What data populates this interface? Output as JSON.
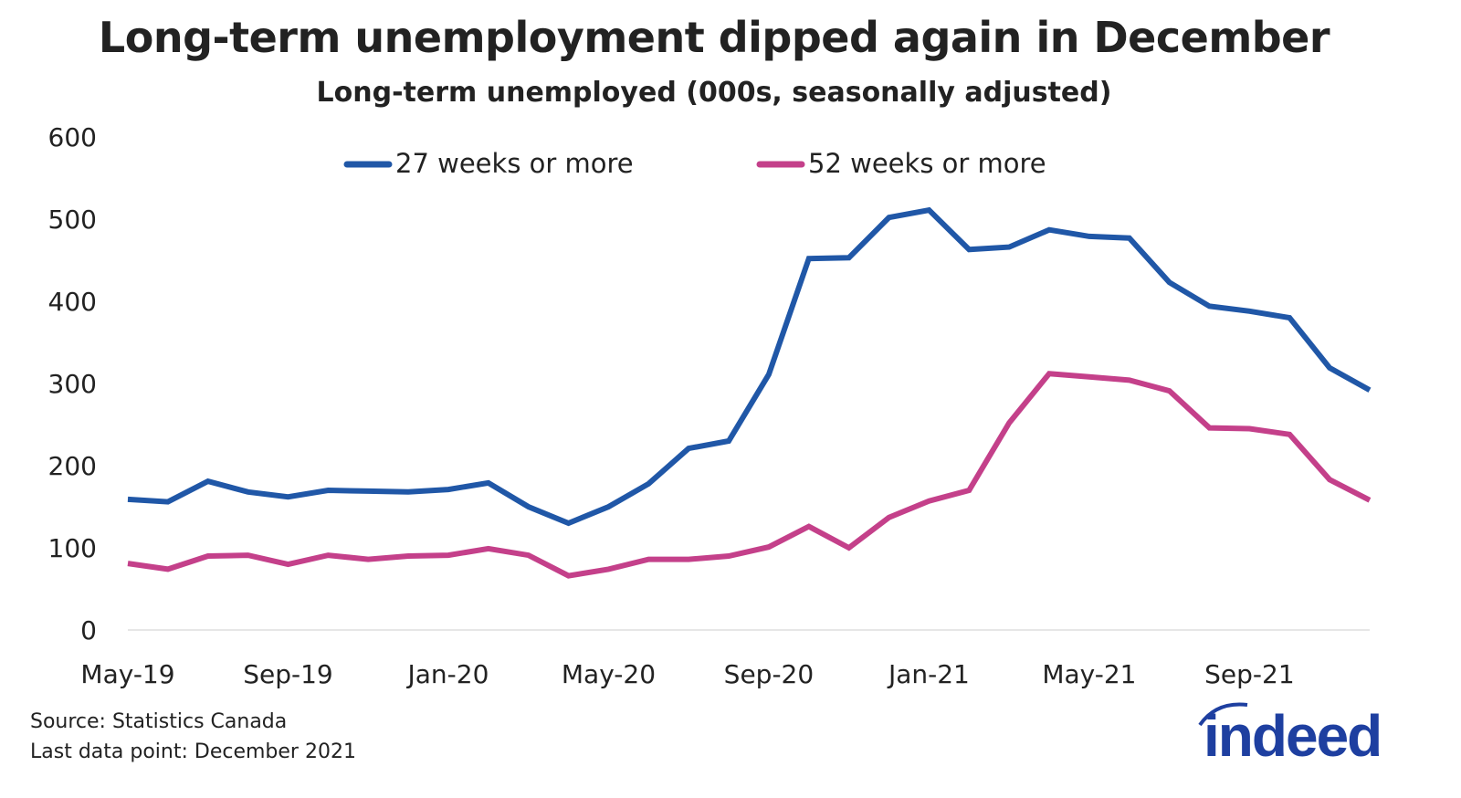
{
  "chart_data": {
    "type": "line",
    "title": "Long-term unemployment dipped again in December",
    "subtitle": "Long-term unemployed (000s, seasonally adjusted)",
    "xlabel": "",
    "ylabel": "",
    "ylim": [
      0,
      600
    ],
    "yticks": [
      "0",
      "100",
      "200",
      "300",
      "400",
      "500",
      "600"
    ],
    "x": [
      "May-19",
      "Jun-19",
      "Jul-19",
      "Aug-19",
      "Sep-19",
      "Oct-19",
      "Nov-19",
      "Dec-19",
      "Jan-20",
      "Feb-20",
      "Mar-20",
      "Apr-20",
      "May-20",
      "Jun-20",
      "Jul-20",
      "Aug-20",
      "Sep-20",
      "Oct-20",
      "Nov-20",
      "Dec-20",
      "Jan-21",
      "Feb-21",
      "Mar-21",
      "Apr-21",
      "May-21",
      "Jun-21",
      "Jul-21",
      "Aug-21",
      "Sep-21",
      "Oct-21",
      "Nov-21",
      "Dec-21"
    ],
    "xticks": [
      "May-19",
      "Sep-19",
      "Jan-20",
      "May-20",
      "Sep-20",
      "Jan-21",
      "May-21",
      "Sep-21"
    ],
    "grid": false,
    "legend_position": "top",
    "series": [
      {
        "name": "27 weeks or more",
        "color": "#2057a7",
        "values": [
          159,
          156,
          181,
          168,
          162,
          170,
          169,
          168,
          171,
          179,
          150,
          130,
          150,
          178,
          221,
          230,
          311,
          452,
          453,
          502,
          511,
          463,
          466,
          487,
          479,
          477,
          423,
          394,
          388,
          380,
          319,
          292
        ]
      },
      {
        "name": "52 weeks or more",
        "color": "#c4408a",
        "values": [
          81,
          74,
          90,
          91,
          80,
          91,
          86,
          90,
          91,
          99,
          91,
          66,
          74,
          86,
          86,
          90,
          101,
          126,
          100,
          137,
          157,
          170,
          252,
          312,
          308,
          304,
          291,
          246,
          245,
          238,
          183,
          158
        ]
      }
    ]
  },
  "footer": {
    "source": "Source: Statistics Canada",
    "last_point": "Last data point: December 2021",
    "logo_text": "indeed"
  }
}
